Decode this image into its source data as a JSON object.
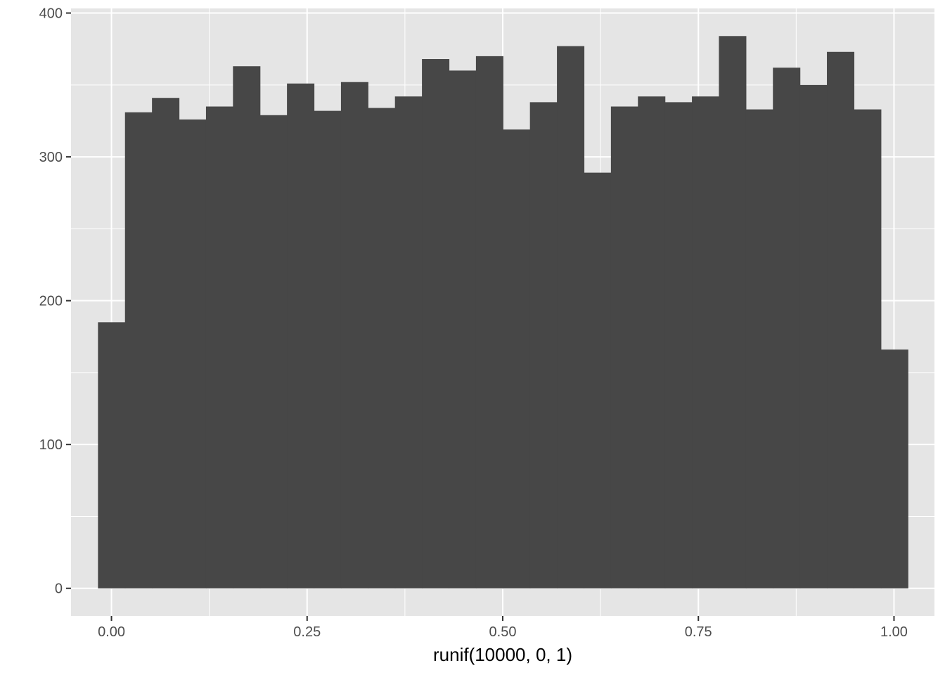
{
  "chart_data": {
    "type": "bar",
    "subtype": "histogram",
    "title": "",
    "xlabel": "runif(10000, 0, 1)",
    "ylabel": "",
    "xlim": [
      -0.0517,
      1.0517
    ],
    "ylim": [
      -19.2,
      403.2
    ],
    "xticks": [
      0,
      0.25,
      0.5,
      0.75,
      1
    ],
    "xtick_labels": [
      "0.00",
      "0.25",
      "0.50",
      "0.75",
      "1.00"
    ],
    "yticks": [
      0,
      100,
      200,
      300,
      400
    ],
    "ytick_labels": [
      "0",
      "100",
      "200",
      "300",
      "400"
    ],
    "bin_width": 0.0345,
    "bin_start": -0.01724,
    "values": [
      185,
      331,
      341,
      326,
      335,
      363,
      329,
      351,
      332,
      352,
      334,
      342,
      368,
      360,
      370,
      319,
      338,
      377,
      289,
      335,
      342,
      338,
      342,
      384,
      333,
      362,
      350,
      373,
      333,
      166
    ],
    "grid": true,
    "legend": "none",
    "colors": {
      "panel": "#e5e5e5",
      "grid": "#ffffff",
      "bar": "#474747",
      "tick": "#333333"
    }
  }
}
